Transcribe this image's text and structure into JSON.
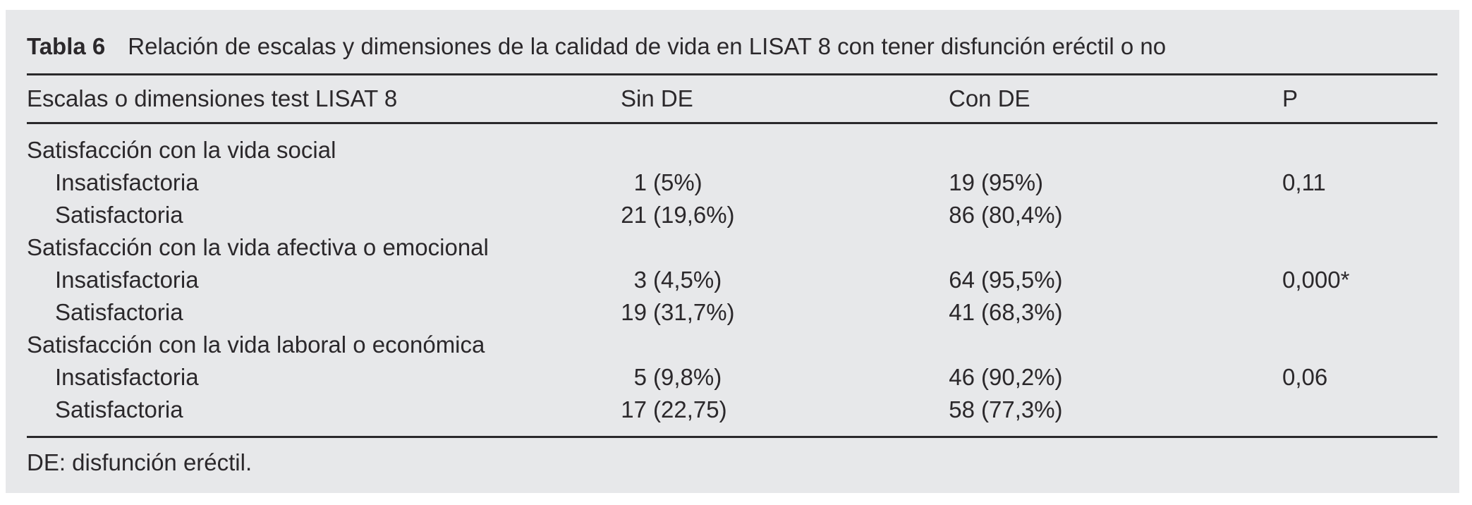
{
  "table": {
    "title_label": "Tabla 6",
    "title_text": "Relación de escalas y dimensiones de la calidad de vida en LISAT 8 con tener disfunción eréctil o no",
    "columns": [
      "Escalas o dimensiones test LISAT 8",
      "Sin DE",
      "Con DE",
      "P"
    ],
    "rows": [
      {
        "type": "group",
        "label": "Satisfacción con la vida social"
      },
      {
        "type": "data",
        "label": "Insatisfactoria",
        "sin_n": "1",
        "sin_pct": "(5%)",
        "con_n": "19",
        "con_pct": "(95%)",
        "p": "0,11"
      },
      {
        "type": "data",
        "label": "Satisfactoria",
        "sin_n": "21",
        "sin_pct": "(19,6%)",
        "con_n": "86",
        "con_pct": "(80,4%)",
        "p": ""
      },
      {
        "type": "group",
        "label": "Satisfacción con la vida afectiva o emocional"
      },
      {
        "type": "data",
        "label": "Insatisfactoria",
        "sin_n": "3",
        "sin_pct": "(4,5%)",
        "con_n": "64",
        "con_pct": "(95,5%)",
        "p": "0,000*"
      },
      {
        "type": "data",
        "label": "Satisfactoria",
        "sin_n": "19",
        "sin_pct": "(31,7%)",
        "con_n": "41",
        "con_pct": "(68,3%)",
        "p": ""
      },
      {
        "type": "group",
        "label": "Satisfacción con la vida laboral o económica"
      },
      {
        "type": "data",
        "label": "Insatisfactoria",
        "sin_n": "5",
        "sin_pct": "(9,8%)",
        "con_n": "46",
        "con_pct": "(90,2%)",
        "p": "0,06"
      },
      {
        "type": "data",
        "label": "Satisfactoria",
        "sin_n": "17",
        "sin_pct": "(22,75)",
        "con_n": "58",
        "con_pct": "(77,3%)",
        "p": ""
      }
    ],
    "footnote": "DE: disfunción eréctil."
  },
  "colors": {
    "panel_bg": "#e7e8ea",
    "text": "#2b282b",
    "rule": "#2a292b"
  }
}
